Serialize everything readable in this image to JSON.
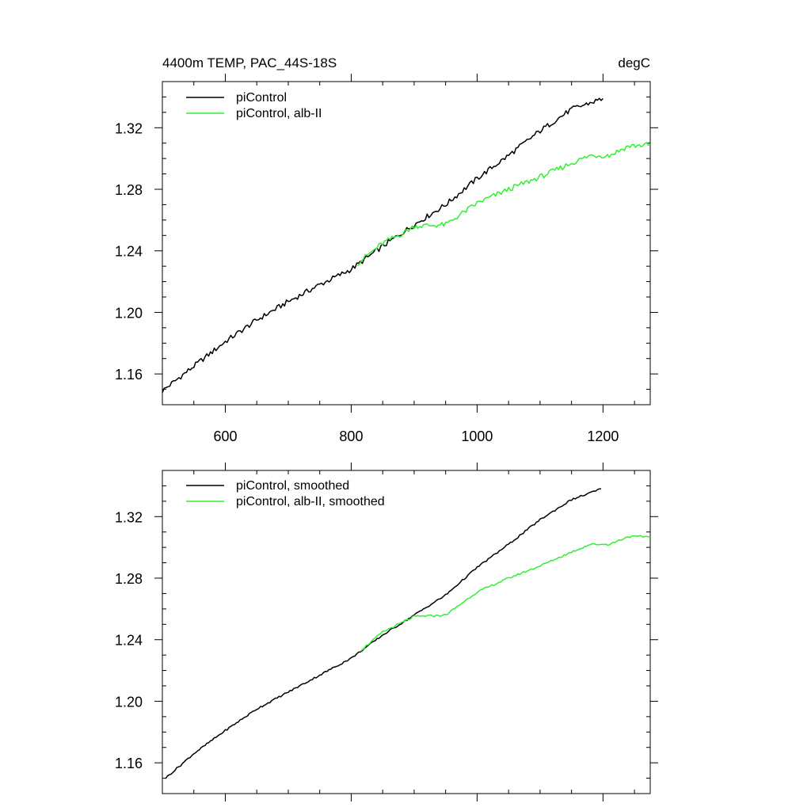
{
  "chart_data": [
    {
      "type": "line",
      "title_left": "4400m TEMP, PAC_44S-18S",
      "title_right": "degC",
      "xlim": [
        500,
        1275
      ],
      "ylim": [
        1.14,
        1.35
      ],
      "xticks": [
        600,
        800,
        1000,
        1200
      ],
      "xtick_labels": [
        "600",
        "800",
        "1000",
        "1200"
      ],
      "yticks": [
        1.16,
        1.2,
        1.24,
        1.28,
        1.32
      ],
      "ytick_labels": [
        "1.16",
        "1.20",
        "1.24",
        "1.28",
        "1.32"
      ],
      "series": [
        {
          "name": "piControl",
          "color": "#000000",
          "x": [
            500,
            550,
            600,
            650,
            700,
            750,
            800,
            850,
            900,
            950,
            1000,
            1050,
            1100,
            1150,
            1200
          ],
          "y": [
            1.149,
            1.165,
            1.181,
            1.195,
            1.207,
            1.218,
            1.228,
            1.243,
            1.257,
            1.27,
            1.287,
            1.302,
            1.318,
            1.332,
            1.339
          ]
        },
        {
          "name": "piControl, alb-II",
          "color": "#33ee33",
          "x": [
            810,
            850,
            880,
            900,
            950,
            1000,
            1050,
            1100,
            1150,
            1180,
            1210,
            1240,
            1275
          ],
          "y": [
            1.232,
            1.245,
            1.251,
            1.256,
            1.257,
            1.271,
            1.28,
            1.288,
            1.297,
            1.302,
            1.302,
            1.308,
            1.309
          ]
        }
      ]
    },
    {
      "type": "line",
      "xlim": [
        500,
        1275
      ],
      "ylim": [
        1.14,
        1.35
      ],
      "xticks": [
        600,
        800,
        1000,
        1200
      ],
      "yticks": [
        1.16,
        1.2,
        1.24,
        1.28,
        1.32
      ],
      "ytick_labels": [
        "1.16",
        "1.20",
        "1.24",
        "1.28",
        "1.32"
      ],
      "series": [
        {
          "name": "piControl, smoothed",
          "color": "#000000",
          "x": [
            505,
            550,
            600,
            650,
            700,
            750,
            800,
            850,
            900,
            950,
            1000,
            1050,
            1100,
            1150,
            1197
          ],
          "y": [
            1.15,
            1.166,
            1.181,
            1.195,
            1.206,
            1.217,
            1.228,
            1.243,
            1.256,
            1.269,
            1.287,
            1.302,
            1.318,
            1.331,
            1.338
          ]
        },
        {
          "name": "piControl, alb-II, smoothed",
          "color": "#33ee33",
          "x": [
            815,
            850,
            880,
            900,
            950,
            1000,
            1050,
            1100,
            1150,
            1180,
            1210,
            1240,
            1275
          ],
          "y": [
            1.233,
            1.245,
            1.251,
            1.255,
            1.256,
            1.271,
            1.28,
            1.288,
            1.297,
            1.302,
            1.302,
            1.307,
            1.307
          ]
        }
      ]
    }
  ]
}
